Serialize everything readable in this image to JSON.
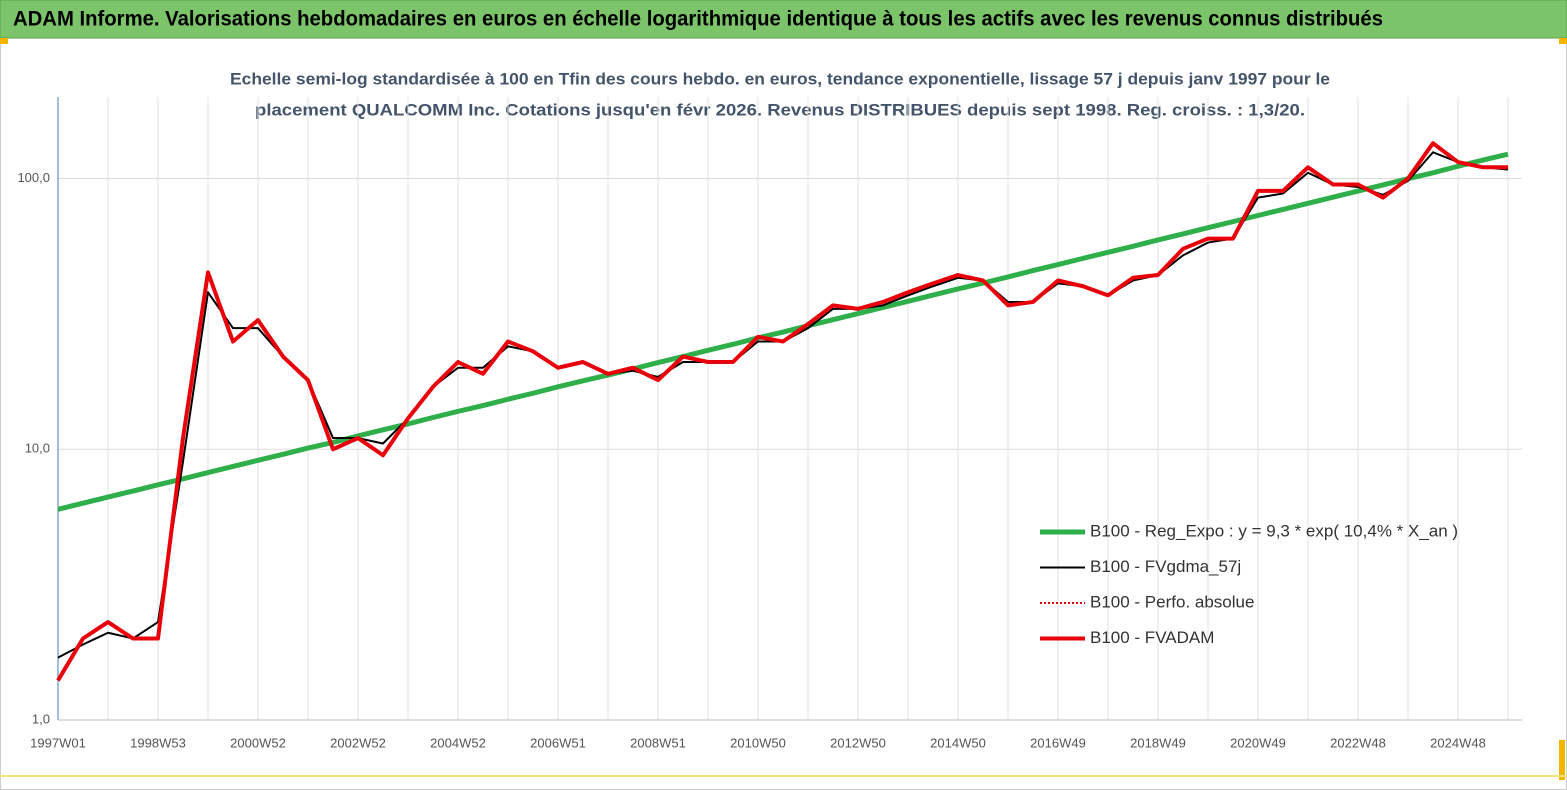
{
  "chart_data": {
    "type": "line",
    "title": "ADAM Informe. Valorisations hebdomadaires en euros en échelle logarithmique identique à tous les actifs avec les revenus connus distribués",
    "subtitle": [
      "Echelle semi-log standardisée à 100 en Tfin des cours hebdo. en euros, tendance exponentielle, lissage 57 j depuis janv 1997 pour le",
      "placement QUALCOMM Inc. Cotations jusqu'en févr 2026. Revenus DISTRIBUES depuis sept 1998. Reg. croiss. : 1,3/20."
    ],
    "log_scale": true,
    "grid": true,
    "legend": "lower right",
    "ylim": [
      1,
      200
    ],
    "yticks": [
      {
        "value": 1,
        "label": "1,0"
      },
      {
        "value": 10,
        "label": "10,0"
      },
      {
        "value": 100,
        "label": "100,0"
      }
    ],
    "categories": [
      "1997W01",
      null,
      null,
      null,
      "1998W53",
      null,
      null,
      null,
      "2000W52",
      null,
      null,
      null,
      "2002W52",
      null,
      null,
      null,
      "2004W52",
      null,
      null,
      null,
      "2006W51",
      null,
      null,
      null,
      "2008W51",
      null,
      null,
      null,
      "2010W50",
      null,
      null,
      null,
      "2012W50",
      null,
      null,
      null,
      "2014W50",
      null,
      null,
      null,
      "2016W49",
      null,
      null,
      null,
      "2018W49",
      null,
      null,
      null,
      "2020W49",
      null,
      null,
      null,
      "2022W48",
      null,
      null,
      null,
      "2024W48",
      null,
      null
    ],
    "series": [
      {
        "name": "B100 - Reg_Expo : y = 9,3 * exp( 10,4% *  X_an )",
        "color": "#2eaf4a",
        "dash": false,
        "values": [
          6.0,
          6.32,
          6.66,
          7.01,
          7.39,
          7.78,
          8.2,
          8.64,
          9.1,
          9.58,
          10.1,
          10.6,
          11.2,
          11.8,
          12.4,
          13.1,
          13.8,
          14.5,
          15.3,
          16.1,
          17.0,
          17.9,
          18.8,
          19.8,
          20.9,
          22.0,
          23.2,
          24.4,
          25.8,
          27.1,
          28.6,
          30.1,
          31.7,
          33.4,
          35.2,
          37.1,
          39.1,
          41.1,
          43.3,
          45.7,
          48.1,
          50.7,
          53.4,
          56.2,
          59.3,
          62.4,
          65.8,
          69.3,
          73.0,
          76.9,
          81.0,
          85.3,
          89.9,
          94.7,
          99.8,
          105,
          111,
          117,
          123
        ]
      },
      {
        "name": "B100 - FVgdma_57j",
        "color": "#000000",
        "dash": false,
        "values": [
          1.7,
          1.9,
          2.1,
          2.0,
          2.3,
          9,
          38,
          28,
          28,
          22,
          18,
          11,
          11,
          10.5,
          13,
          17,
          20,
          20,
          24,
          23,
          20,
          21,
          19,
          19.5,
          18.5,
          21,
          21,
          21,
          25,
          25,
          28,
          33,
          33,
          34,
          37,
          40,
          43,
          42,
          35,
          35,
          41,
          40,
          37,
          42,
          44,
          52,
          58,
          60,
          85,
          88,
          105,
          95,
          93,
          87,
          98,
          125,
          115,
          110,
          108
        ]
      },
      {
        "name": "B100 - Perfo. absolue",
        "color": "#e00000",
        "dash": true,
        "values": [
          1.4,
          2.0,
          2.3,
          2.0,
          2.0,
          11,
          45,
          25,
          30,
          22,
          18,
          10,
          11,
          9.5,
          13,
          17,
          21,
          19,
          25,
          23,
          20,
          21,
          19,
          20,
          18,
          22,
          21,
          21,
          26,
          25,
          29,
          34,
          33,
          35,
          38,
          41,
          44,
          42,
          34,
          35,
          42,
          40,
          37,
          43,
          44,
          55,
          60,
          60,
          90,
          90,
          110,
          95,
          95,
          85,
          100,
          135,
          115,
          110,
          110
        ]
      },
      {
        "name": "B100 - FVADAM",
        "color": "#e8000b",
        "dash": false,
        "values": [
          1.4,
          2.0,
          2.3,
          2.0,
          2.0,
          11,
          45,
          25,
          30,
          22,
          18,
          10,
          11,
          9.5,
          13,
          17,
          21,
          19,
          25,
          23,
          20,
          21,
          19,
          20,
          18,
          22,
          21,
          21,
          26,
          25,
          29,
          34,
          33,
          35,
          38,
          41,
          44,
          42,
          34,
          35,
          42,
          40,
          37,
          43,
          44,
          55,
          60,
          60,
          90,
          90,
          110,
          95,
          95,
          85,
          100,
          135,
          115,
          110,
          110
        ]
      }
    ]
  }
}
